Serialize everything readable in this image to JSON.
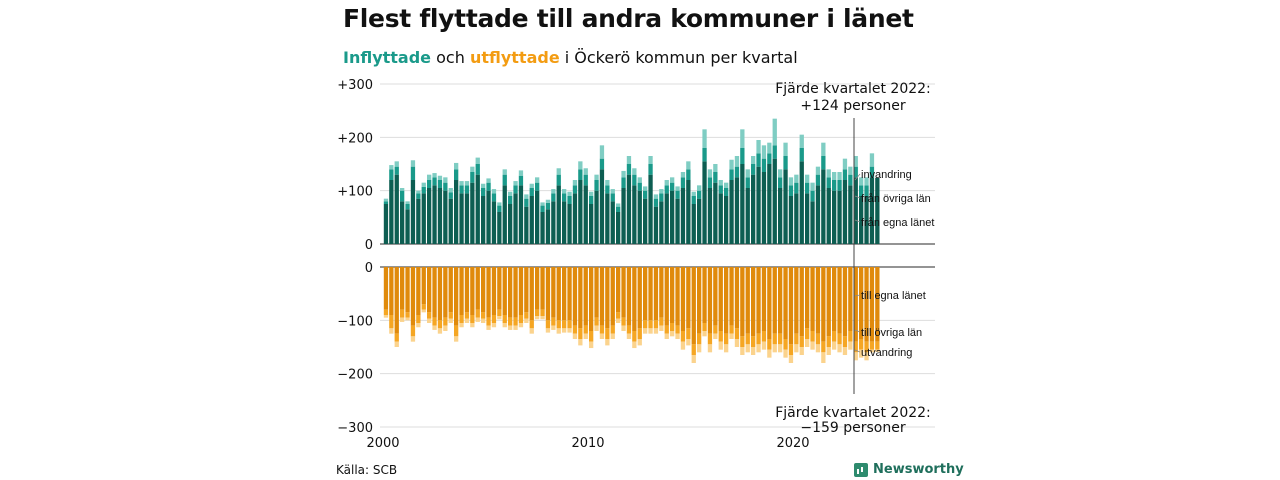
{
  "header": {
    "title": "Flest flyttade till andra kommuner i länet",
    "subtitle_in": "Inflyttade",
    "subtitle_mid": " och ",
    "subtitle_out": "utflyttade",
    "subtitle_rest": " i Öckerö kommun per kvartal"
  },
  "footer": {
    "source": "Källa: SCB",
    "brand": "Newsworthy"
  },
  "colors": {
    "in_egna": "#0d5e52",
    "in_ovriga": "#1a9a8a",
    "in_invandring": "#7fcdc3",
    "out_egna": "#e08a0b",
    "out_ovriga": "#f5a623",
    "out_utvandring": "#fbd38d"
  },
  "chart_data": {
    "type": "bar",
    "stacked": true,
    "x_start": "2000 Q1",
    "x_ticks": [
      "2000",
      "2010",
      "2020"
    ],
    "y_ticks": [
      "+300",
      "+200",
      "+100",
      "0",
      "0",
      "−100",
      "−200",
      "−300"
    ],
    "ylim_in": [
      0,
      300
    ],
    "ylim_out": [
      -300,
      0
    ],
    "annotation_in": {
      "line1": "Fjärde kvartalet 2022:",
      "line2": "+124 personer"
    },
    "annotation_out": {
      "line1": "Fjärde kvartalet 2022:",
      "line2": "−159 personer"
    },
    "series_in": [
      {
        "name": "från egna länet",
        "values": [
          75,
          120,
          130,
          80,
          65,
          120,
          85,
          95,
          105,
          110,
          105,
          100,
          85,
          120,
          95,
          95,
          115,
          130,
          90,
          100,
          80,
          60,
          110,
          75,
          95,
          110,
          70,
          90,
          100,
          60,
          65,
          80,
          110,
          80,
          75,
          95,
          120,
          110,
          75,
          100,
          140,
          95,
          80,
          60,
          105,
          130,
          110,
          100,
          85,
          130,
          70,
          80,
          95,
          100,
          85,
          105,
          120,
          75,
          85,
          155,
          105,
          115,
          95,
          90,
          120,
          125,
          150,
          105,
          130,
          145,
          135,
          150,
          160,
          105,
          140,
          90,
          95,
          155,
          95,
          80,
          110,
          140,
          105,
          100,
          100,
          120,
          110,
          125,
          90,
          90,
          125,
          124
        ]
      },
      {
        "name": "från övriga län",
        "values": [
          5,
          20,
          15,
          20,
          10,
          25,
          10,
          12,
          15,
          15,
          15,
          15,
          12,
          20,
          15,
          15,
          20,
          20,
          15,
          15,
          15,
          12,
          20,
          15,
          15,
          18,
          15,
          15,
          15,
          12,
          12,
          15,
          20,
          15,
          15,
          15,
          20,
          20,
          15,
          20,
          20,
          15,
          15,
          10,
          20,
          20,
          20,
          15,
          15,
          20,
          15,
          15,
          15,
          15,
          15,
          20,
          20,
          15,
          15,
          25,
          20,
          20,
          15,
          15,
          20,
          20,
          30,
          20,
          20,
          25,
          25,
          20,
          25,
          20,
          25,
          20,
          20,
          25,
          20,
          20,
          20,
          25,
          20,
          20,
          20,
          20,
          20,
          20,
          20,
          20,
          20,
          0
        ]
      },
      {
        "name": "invandring",
        "values": [
          5,
          8,
          10,
          5,
          5,
          12,
          5,
          8,
          10,
          8,
          8,
          10,
          8,
          12,
          8,
          8,
          10,
          12,
          8,
          8,
          8,
          6,
          10,
          8,
          8,
          10,
          8,
          8,
          10,
          6,
          6,
          8,
          12,
          8,
          8,
          10,
          15,
          12,
          8,
          10,
          25,
          10,
          8,
          6,
          12,
          15,
          12,
          10,
          8,
          15,
          8,
          8,
          10,
          10,
          8,
          10,
          15,
          8,
          10,
          35,
          15,
          15,
          10,
          10,
          18,
          20,
          35,
          15,
          15,
          25,
          25,
          20,
          50,
          15,
          25,
          15,
          15,
          25,
          15,
          15,
          15,
          25,
          15,
          15,
          15,
          20,
          15,
          20,
          15,
          15,
          25,
          0
        ]
      }
    ],
    "series_out": [
      {
        "name": "till egna länet",
        "values": [
          -80,
          -90,
          -125,
          -80,
          -85,
          -110,
          -90,
          -70,
          -85,
          -95,
          -100,
          -95,
          -85,
          -110,
          -90,
          -85,
          -90,
          -80,
          -85,
          -95,
          -90,
          -80,
          -90,
          -95,
          -95,
          -90,
          -85,
          -100,
          -80,
          -80,
          -100,
          -95,
          -100,
          -100,
          -100,
          -110,
          -115,
          -110,
          -120,
          -95,
          -110,
          -115,
          -110,
          -85,
          -95,
          -110,
          -120,
          -115,
          -100,
          -100,
          -100,
          -95,
          -110,
          -105,
          -110,
          -120,
          -115,
          -145,
          -125,
          -105,
          -125,
          -110,
          -120,
          -125,
          -110,
          -115,
          -130,
          -125,
          -130,
          -125,
          -120,
          -135,
          -125,
          -125,
          -135,
          -145,
          -125,
          -130,
          -115,
          -120,
          -125,
          -140,
          -130,
          -120,
          -125,
          -130,
          -120,
          -140,
          -135,
          -140,
          -140,
          -140
        ]
      },
      {
        "name": "till övriga län",
        "values": [
          -10,
          -25,
          -15,
          -15,
          -10,
          -20,
          -15,
          -10,
          -12,
          -15,
          -15,
          -15,
          -12,
          -20,
          -15,
          -12,
          -15,
          -15,
          -12,
          -15,
          -15,
          -12,
          -15,
          -15,
          -15,
          -15,
          -12,
          -15,
          -12,
          -12,
          -15,
          -15,
          -15,
          -15,
          -15,
          -15,
          -20,
          -15,
          -20,
          -15,
          -15,
          -20,
          -15,
          -12,
          -15,
          -15,
          -20,
          -20,
          -15,
          -15,
          -15,
          -15,
          -15,
          -15,
          -15,
          -20,
          -20,
          -20,
          -20,
          -15,
          -20,
          -15,
          -20,
          -20,
          -15,
          -20,
          -20,
          -20,
          -20,
          -20,
          -20,
          -20,
          -20,
          -20,
          -20,
          -20,
          -20,
          -20,
          -20,
          -20,
          -20,
          -20,
          -20,
          -20,
          -20,
          -20,
          -20,
          -20,
          -20,
          -20,
          -15,
          -15
        ]
      },
      {
        "name": "utvandring",
        "values": [
          -5,
          -10,
          -10,
          -8,
          -5,
          -10,
          -8,
          -5,
          -8,
          -8,
          -10,
          -10,
          -8,
          -10,
          -8,
          -8,
          -8,
          -8,
          -8,
          -8,
          -8,
          -6,
          -8,
          -8,
          -8,
          -8,
          -8,
          -10,
          -6,
          -6,
          -8,
          -8,
          -10,
          -8,
          -8,
          -10,
          -12,
          -10,
          -12,
          -10,
          -10,
          -12,
          -10,
          -8,
          -10,
          -10,
          -12,
          -12,
          -10,
          -10,
          -10,
          -10,
          -10,
          -10,
          -10,
          -15,
          -12,
          -15,
          -15,
          -10,
          -15,
          -10,
          -15,
          -15,
          -10,
          -15,
          -15,
          -15,
          -15,
          -15,
          -15,
          -15,
          -15,
          -15,
          -15,
          -15,
          -15,
          -15,
          -15,
          -15,
          -15,
          -20,
          -15,
          -15,
          -15,
          -15,
          -15,
          -15,
          -15,
          -15,
          -5,
          -4
        ]
      }
    ]
  }
}
